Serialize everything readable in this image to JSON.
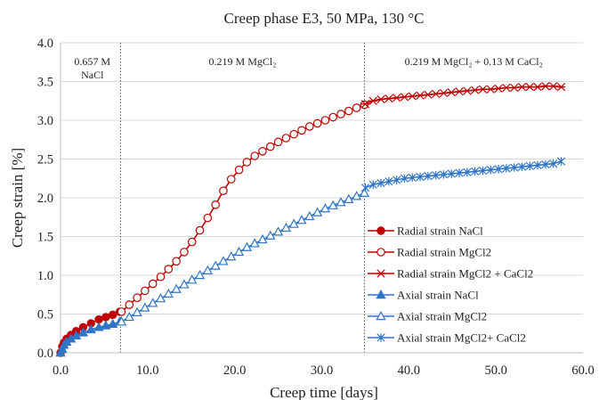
{
  "chart_data": {
    "type": "line",
    "title": "Creep phase E3, 50 MPa, 130 °C",
    "xlabel": "Creep time [days]",
    "ylabel": "Creep strain [%]",
    "xlim": [
      0,
      60
    ],
    "ylim": [
      0,
      4
    ],
    "x_ticks": [
      "0.0",
      "10.0",
      "20.0",
      "30.0",
      "40.0",
      "50.0",
      "60.0"
    ],
    "y_ticks": [
      "0.0",
      "0.5",
      "1.0",
      "1.5",
      "2.0",
      "2.5",
      "3.0",
      "3.5",
      "4.0"
    ],
    "grid": "horizontal",
    "legend_position": "right-center",
    "phase_boundaries": [
      6.9,
      34.9
    ],
    "phase_labels": [
      {
        "line1": "0.657 M",
        "line2": "NaCl"
      },
      {
        "line1": "0.219 M MgCl₂",
        "line2": ""
      },
      {
        "line1": "0.219 M MgCl₂ + 0.13 M CaCl₂",
        "line2": ""
      }
    ],
    "series": [
      {
        "name": "Radial strain NaCl",
        "color": "#c00000",
        "marker": "filled-circle",
        "x": [
          0.0,
          0.2,
          0.4,
          0.7,
          1.2,
          1.8,
          2.6,
          3.5,
          4.4,
          5.2,
          6.0,
          6.8
        ],
        "y": [
          0.0,
          0.08,
          0.13,
          0.18,
          0.23,
          0.28,
          0.33,
          0.38,
          0.43,
          0.46,
          0.49,
          0.53
        ]
      },
      {
        "name": "Radial strain MgCl2",
        "color": "#c00000",
        "marker": "open-circle",
        "x": [
          7.0,
          7.9,
          8.8,
          9.7,
          10.6,
          11.5,
          12.4,
          13.3,
          14.2,
          15.1,
          16.0,
          16.9,
          17.8,
          18.7,
          19.6,
          20.5,
          21.4,
          22.3,
          23.2,
          24.1,
          25.0,
          25.9,
          26.8,
          27.7,
          28.6,
          29.5,
          30.4,
          31.3,
          32.2,
          33.1,
          34.0,
          34.9
        ],
        "y": [
          0.53,
          0.62,
          0.71,
          0.8,
          0.89,
          0.98,
          1.08,
          1.18,
          1.3,
          1.43,
          1.58,
          1.74,
          1.91,
          2.09,
          2.24,
          2.36,
          2.46,
          2.54,
          2.6,
          2.66,
          2.72,
          2.77,
          2.82,
          2.87,
          2.92,
          2.96,
          3.0,
          3.04,
          3.08,
          3.12,
          3.16,
          3.2
        ]
      },
      {
        "name": "Radial strain MgCl2 + CaCl2",
        "color": "#c00000",
        "marker": "star",
        "x": [
          35.0,
          35.9,
          36.8,
          37.7,
          38.6,
          39.5,
          40.4,
          41.3,
          42.2,
          43.1,
          44.0,
          44.9,
          45.8,
          46.7,
          47.6,
          48.5,
          49.4,
          50.3,
          51.2,
          52.1,
          53.0,
          53.9,
          54.8,
          55.7,
          56.6,
          57.5
        ],
        "y": [
          3.21,
          3.25,
          3.27,
          3.28,
          3.29,
          3.3,
          3.31,
          3.32,
          3.33,
          3.34,
          3.35,
          3.36,
          3.37,
          3.38,
          3.39,
          3.4,
          3.4,
          3.41,
          3.42,
          3.42,
          3.43,
          3.43,
          3.43,
          3.44,
          3.44,
          3.43
        ]
      },
      {
        "name": "Axial strain NaCl",
        "color": "#2e75c8",
        "marker": "filled-triangle",
        "x": [
          0.0,
          0.2,
          0.4,
          0.7,
          1.2,
          1.8,
          2.6,
          3.5,
          4.4,
          5.2,
          6.0,
          6.8
        ],
        "y": [
          0.0,
          0.05,
          0.1,
          0.14,
          0.18,
          0.22,
          0.26,
          0.3,
          0.33,
          0.35,
          0.37,
          0.4
        ]
      },
      {
        "name": "Axial strain MgCl2",
        "color": "#2e75c8",
        "marker": "open-triangle",
        "x": [
          7.0,
          7.9,
          8.8,
          9.7,
          10.6,
          11.5,
          12.4,
          13.3,
          14.2,
          15.1,
          16.0,
          16.9,
          17.8,
          18.7,
          19.6,
          20.5,
          21.4,
          22.3,
          23.2,
          24.1,
          25.0,
          25.9,
          26.8,
          27.7,
          28.6,
          29.5,
          30.4,
          31.3,
          32.2,
          33.1,
          34.0,
          34.9
        ],
        "y": [
          0.4,
          0.46,
          0.52,
          0.58,
          0.64,
          0.7,
          0.76,
          0.82,
          0.88,
          0.94,
          1.0,
          1.06,
          1.12,
          1.18,
          1.24,
          1.3,
          1.36,
          1.41,
          1.46,
          1.51,
          1.56,
          1.61,
          1.66,
          1.71,
          1.76,
          1.81,
          1.86,
          1.9,
          1.94,
          1.98,
          2.02,
          2.06
        ]
      },
      {
        "name": "Axial strain MgCl2+ CaCl2",
        "color": "#2e75c8",
        "marker": "x-star",
        "x": [
          35.0,
          35.9,
          36.8,
          37.7,
          38.6,
          39.5,
          40.4,
          41.3,
          42.2,
          43.1,
          44.0,
          44.9,
          45.8,
          46.7,
          47.6,
          48.5,
          49.4,
          50.3,
          51.2,
          52.1,
          53.0,
          53.9,
          54.8,
          55.7,
          56.6,
          57.5
        ],
        "y": [
          2.13,
          2.17,
          2.19,
          2.21,
          2.23,
          2.25,
          2.26,
          2.27,
          2.28,
          2.29,
          2.3,
          2.31,
          2.32,
          2.33,
          2.34,
          2.35,
          2.36,
          2.37,
          2.38,
          2.39,
          2.4,
          2.41,
          2.42,
          2.43,
          2.44,
          2.47
        ]
      }
    ]
  }
}
